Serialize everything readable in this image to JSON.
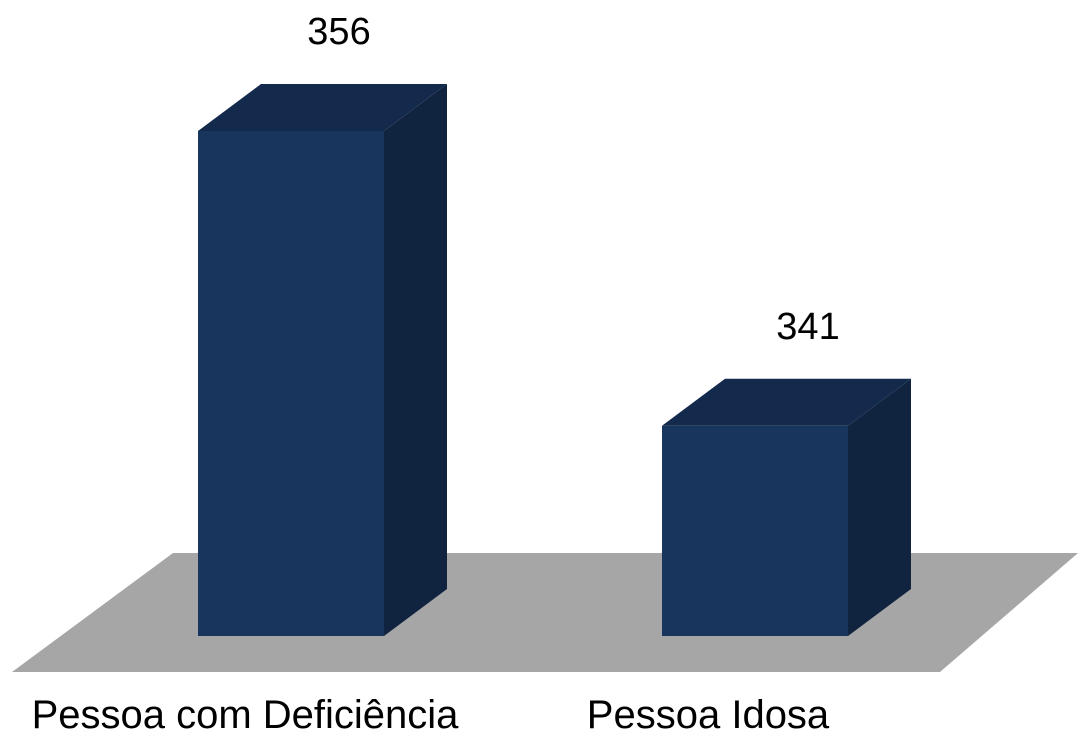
{
  "chart_data": {
    "type": "bar",
    "style": "3d",
    "categories": [
      "Pessoa com Deficiência",
      "Pessoa Idosa"
    ],
    "values": [
      356,
      341
    ],
    "data_labels": [
      "356",
      "341"
    ],
    "title": "",
    "xlabel": "",
    "ylabel": "",
    "grid": false,
    "legend": "none",
    "colors": {
      "bar_front": "#18355e",
      "bar_side": "#10233f",
      "bar_top": "#142a4c",
      "floor": "#a6a6a6"
    }
  }
}
